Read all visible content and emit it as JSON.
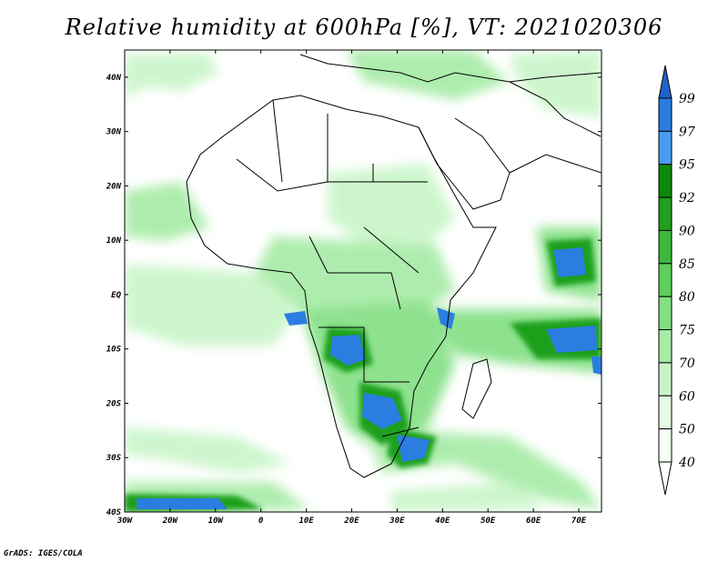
{
  "title": "Relative humidity at 600hPa [%], VT: 2021020306",
  "credit": "GrADS: IGES/COLA",
  "map": {
    "lon_range": [
      -30,
      75
    ],
    "lat_range": [
      -40,
      45
    ],
    "lon_ticks": [
      "30W",
      "20W",
      "10W",
      "0",
      "10E",
      "20E",
      "30E",
      "40E",
      "50E",
      "60E",
      "70E"
    ],
    "lat_ticks": [
      "40N",
      "30N",
      "20N",
      "10N",
      "EQ",
      "10S",
      "20S",
      "30S",
      "40S"
    ],
    "humid_regions": [
      {
        "lon": 25,
        "lat": -11,
        "value": 97
      },
      {
        "lon": 28,
        "lat": -22,
        "value": 97
      },
      {
        "lon": 32,
        "lat": -28,
        "value": 97
      },
      {
        "lon": 36,
        "lat": -5,
        "value": 85
      },
      {
        "lon": 60,
        "lat": -10,
        "value": 97
      },
      {
        "lon": 64,
        "lat": 13,
        "value": 90
      },
      {
        "lon": -20,
        "lat": -37,
        "value": 97
      },
      {
        "lon": 45,
        "lat": -32,
        "value": 80
      },
      {
        "lon": 20,
        "lat": 20,
        "value": 70
      },
      {
        "lon": 10,
        "lat": 0,
        "value": 75
      }
    ]
  },
  "colorbar": {
    "levels": [
      "99",
      "97",
      "95",
      "92",
      "90",
      "85",
      "80",
      "75",
      "70",
      "60",
      "50",
      "40"
    ],
    "colors": [
      "#1e64c8",
      "#2b7de0",
      "#4a9cf0",
      "#0a8a0a",
      "#1fa01f",
      "#3cb93c",
      "#5ccf5c",
      "#82df82",
      "#a6eba6",
      "#c8f5c8",
      "#e4fae4",
      "#f4fff4"
    ]
  }
}
